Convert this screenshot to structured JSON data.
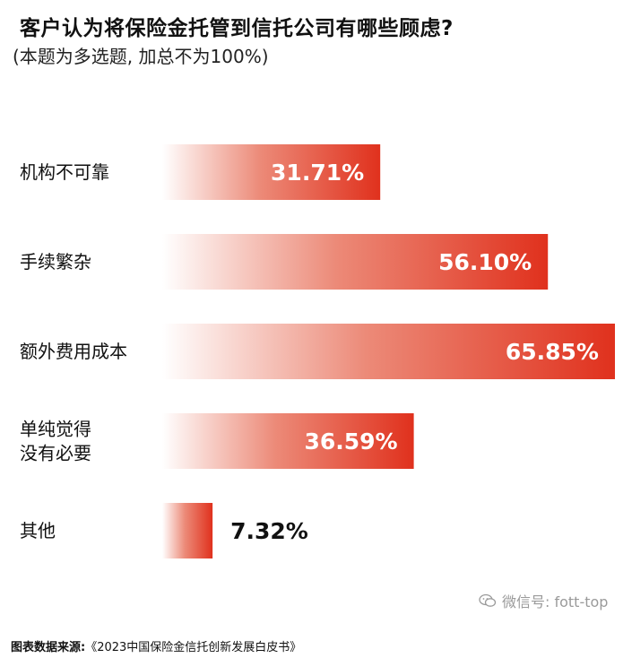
{
  "header": {
    "title": "客户认为将保险金托管到信托公司有哪些顾虑?",
    "subtitle": "(本题为多选题, 加总不为100%)"
  },
  "watermark": {
    "icon": "wechat-icon",
    "text": "微信号: fott-top"
  },
  "source": {
    "prefix": "图表数据来源:",
    "text": "《2023中国保险金信托创新发展白皮书》"
  },
  "colors": {
    "bar_dark": "#e0311d",
    "bar_light": "#ffffff",
    "value_inside": "#ffffff",
    "value_outside": "#111111"
  },
  "chart_data": {
    "type": "bar",
    "orientation": "horizontal",
    "categories": [
      [
        "机构不可靠"
      ],
      [
        "手续繁杂"
      ],
      [
        "额外费用成本"
      ],
      [
        "单纯觉得",
        "没有必要"
      ],
      [
        "其他"
      ]
    ],
    "values": [
      31.71,
      56.1,
      65.85,
      36.59,
      7.32
    ],
    "value_labels": [
      "31.71%",
      "56.10%",
      "65.85%",
      "36.59%",
      "7.32%"
    ],
    "unit": "%",
    "xlim": [
      0,
      65.85
    ],
    "grid": false,
    "legend": "none"
  }
}
